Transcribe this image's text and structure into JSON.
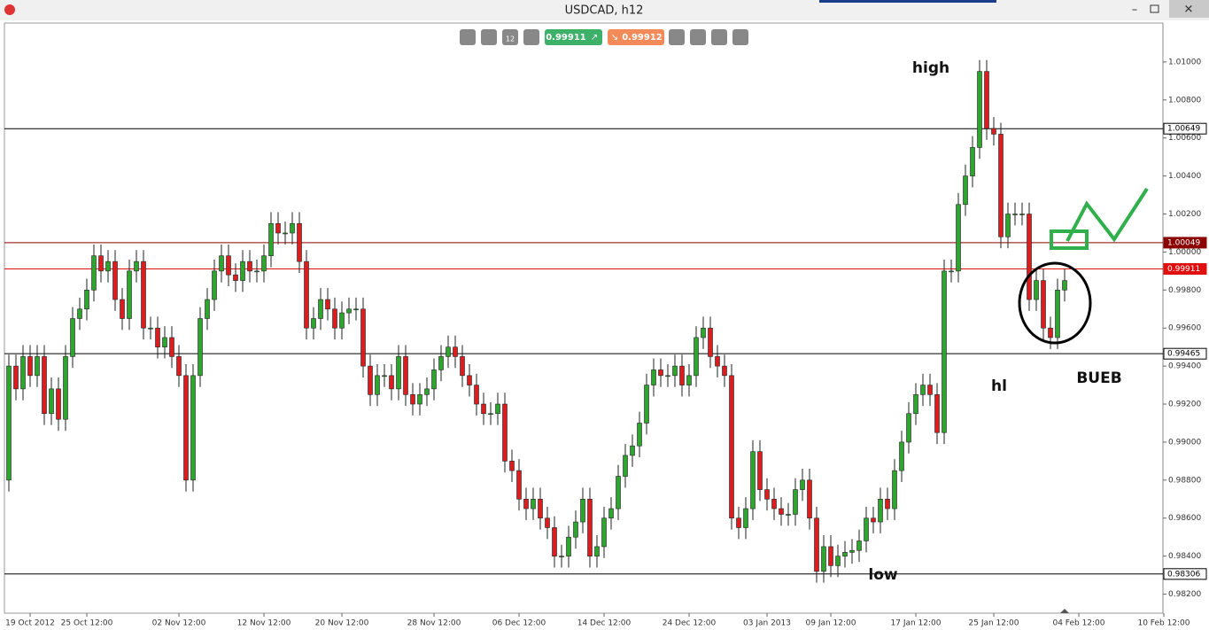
{
  "window": {
    "title": "USDCAD, h12",
    "period_icon": "12",
    "bid": "0.99911",
    "ask": "0.99912"
  },
  "chart_data": {
    "type": "candlestick",
    "up_color": "#2fa52f",
    "down_color": "#d81e1e",
    "ylim": [
      0.981,
      1.012
    ],
    "yticks": [
      {
        "value": 0.982,
        "label": "0.98200"
      },
      {
        "value": 0.984,
        "label": "0.98400"
      },
      {
        "value": 0.986,
        "label": "0.98600"
      },
      {
        "value": 0.988,
        "label": "0.98800"
      },
      {
        "value": 0.99,
        "label": "0.99000"
      },
      {
        "value": 0.992,
        "label": "0.99200"
      },
      {
        "value": 0.994,
        "label": "0.99400"
      },
      {
        "value": 0.996,
        "label": "0.99600"
      },
      {
        "value": 0.998,
        "label": "0.99800"
      },
      {
        "value": 1.0,
        "label": "1.00000"
      },
      {
        "value": 1.002,
        "label": "1.00200"
      },
      {
        "value": 1.004,
        "label": "1.00400"
      },
      {
        "value": 1.006,
        "label": "1.00600"
      },
      {
        "value": 1.008,
        "label": "1.00800"
      },
      {
        "value": 1.01,
        "label": "1.01000"
      }
    ],
    "xlim": [
      0,
      164
    ],
    "xticks": [
      {
        "value": 3,
        "label": "19 Oct 2012"
      },
      {
        "value": 11,
        "label": "25 Oct 12:00"
      },
      {
        "value": 24,
        "label": "02 Nov 12:00"
      },
      {
        "value": 36,
        "label": "12 Nov 12:00"
      },
      {
        "value": 47,
        "label": "20 Nov 12:00"
      },
      {
        "value": 60,
        "label": "28 Nov 12:00"
      },
      {
        "value": 72,
        "label": "06 Dec 12:00"
      },
      {
        "value": 84,
        "label": "14 Dec 12:00"
      },
      {
        "value": 96,
        "label": "24 Dec 12:00"
      },
      {
        "value": 107,
        "label": "03 Jan 2013"
      },
      {
        "value": 116,
        "label": "09 Jan 12:00"
      },
      {
        "value": 128,
        "label": "17 Jan 12:00"
      },
      {
        "value": 139,
        "label": "25 Jan 12:00"
      },
      {
        "value": 151,
        "label": "04 Feb 12:00"
      },
      {
        "value": 163,
        "label": "10 Feb 12:00"
      }
    ],
    "levels": [
      {
        "value": 1.00649,
        "color": "#000000"
      },
      {
        "value": 1.00049,
        "color": "#8b0000"
      },
      {
        "value": 0.99911,
        "color": "#e01010"
      },
      {
        "value": 0.99465,
        "color": "#000000"
      },
      {
        "value": 0.98306,
        "color": "#000000"
      }
    ],
    "annotations": [
      {
        "text": "high"
      },
      {
        "text": "hl"
      },
      {
        "text": "BUEB"
      },
      {
        "text": "low"
      }
    ],
    "open": [
      0.988,
      0.994,
      0.9928,
      0.9945,
      0.9935,
      0.9945,
      0.9915,
      0.9928,
      0.9912,
      0.9945,
      0.9965,
      0.997,
      0.998,
      0.9998,
      0.999,
      0.9995,
      0.9975,
      0.9965,
      0.999,
      0.9995,
      0.996,
      0.996,
      0.995,
      0.9955,
      0.9945,
      0.9935,
      0.988,
      0.9935,
      0.9965,
      0.9975,
      0.999,
      0.9998,
      0.9988,
      0.9985,
      0.9995,
      0.999,
      0.999,
      0.9998,
      1.0015,
      1.001,
      1.001,
      1.0015,
      0.9995,
      0.996,
      0.9965,
      0.9975,
      0.997,
      0.996,
      0.9968,
      0.997,
      0.997,
      0.994,
      0.9925,
      0.9935,
      0.9935,
      0.9928,
      0.9945,
      0.9925,
      0.992,
      0.9925,
      0.9928,
      0.9938,
      0.9945,
      0.995,
      0.9945,
      0.9935,
      0.993,
      0.992,
      0.9915,
      0.9915,
      0.992,
      0.989,
      0.9885,
      0.987,
      0.9865,
      0.987,
      0.986,
      0.9855,
      0.984,
      0.984,
      0.985,
      0.9858,
      0.987,
      0.984,
      0.9845,
      0.986,
      0.9865,
      0.9882,
      0.9893,
      0.9898,
      0.991,
      0.993,
      0.9938,
      0.9935,
      0.9935,
      0.994,
      0.993,
      0.9935,
      0.9955,
      0.996,
      0.9945,
      0.994,
      0.9935,
      0.986,
      0.9855,
      0.9865,
      0.9895,
      0.9875,
      0.987,
      0.9865,
      0.9862,
      0.9862,
      0.9875,
      0.988,
      0.986,
      0.9832,
      0.9845,
      0.9835,
      0.984,
      0.9842,
      0.9843,
      0.9848,
      0.986,
      0.9858,
      0.987,
      0.9865,
      0.9885,
      0.99,
      0.9915,
      0.9925,
      0.993,
      0.9925,
      0.9905,
      0.999,
      0.999,
      1.0025,
      1.004,
      1.0055,
      1.0095,
      1.0065,
      1.0062,
      1.0008,
      1.002,
      1.002,
      1.002,
      0.9975,
      0.9985,
      0.996,
      0.9955,
      0.998
    ],
    "high": [
      0.9946,
      0.9946,
      0.9951,
      0.9951,
      0.9951,
      0.9951,
      0.9934,
      0.9934,
      0.9951,
      0.9971,
      0.9976,
      0.9986,
      1.0004,
      1.0004,
      1.0001,
      1.0001,
      0.9981,
      0.9996,
      1.0001,
      1.0001,
      0.9966,
      0.9966,
      0.9961,
      0.9961,
      0.9951,
      0.9941,
      0.9941,
      0.9971,
      0.9981,
      0.9996,
      1.0004,
      1.0004,
      0.9994,
      1.0001,
      1.0001,
      0.9996,
      1.0004,
      1.0021,
      1.0021,
      1.0016,
      1.0021,
      1.0021,
      1.0001,
      0.9971,
      0.9981,
      0.9981,
      0.9976,
      0.9974,
      0.9976,
      0.9976,
      0.9976,
      0.9946,
      0.9941,
      0.9941,
      0.9941,
      0.9951,
      0.9951,
      0.9931,
      0.9931,
      0.9934,
      0.9944,
      0.9951,
      0.9956,
      0.9956,
      0.9951,
      0.9941,
      0.9936,
      0.9926,
      0.9921,
      0.9926,
      0.9926,
      0.9896,
      0.9891,
      0.9876,
      0.9876,
      0.9876,
      0.9866,
      0.9861,
      0.9846,
      0.9856,
      0.9864,
      0.9876,
      0.9876,
      0.9851,
      0.9866,
      0.9871,
      0.9888,
      0.9899,
      0.9904,
      0.9916,
      0.9936,
      0.9944,
      0.9944,
      0.9941,
      0.9946,
      0.9946,
      0.9941,
      0.9961,
      0.9966,
      0.9966,
      0.9951,
      0.9946,
      0.9941,
      0.9866,
      0.9871,
      0.9901,
      0.9901,
      0.9881,
      0.9876,
      0.9871,
      0.9868,
      0.9881,
      0.9886,
      0.9886,
      0.9866,
      0.9851,
      0.9851,
      0.9846,
      0.9848,
      0.9849,
      0.9854,
      0.9866,
      0.9866,
      0.9876,
      0.9876,
      0.9891,
      0.9906,
      0.9921,
      0.9931,
      0.9936,
      0.9936,
      0.9931,
      0.9996,
      0.9996,
      1.0031,
      1.0046,
      1.0061,
      1.0101,
      1.0101,
      1.0071,
      1.0068,
      1.0026,
      1.0026,
      1.0026,
      1.0026,
      0.9991,
      0.9991,
      0.9966,
      0.9986,
      0.9991
    ],
    "low": [
      0.9874,
      0.9922,
      0.9922,
      0.9929,
      0.9929,
      0.9909,
      0.9909,
      0.9906,
      0.9906,
      0.9939,
      0.9959,
      0.9964,
      0.9974,
      0.9984,
      0.9984,
      0.9969,
      0.9959,
      0.9959,
      0.9984,
      0.9954,
      0.9954,
      0.9944,
      0.9944,
      0.9939,
      0.9929,
      0.9874,
      0.9874,
      0.9929,
      0.9959,
      0.9969,
      0.9984,
      0.9982,
      0.9979,
      0.9979,
      0.9984,
      0.9984,
      0.9984,
      0.9992,
      1.0004,
      1.0004,
      1.0004,
      0.9989,
      0.9954,
      0.9954,
      0.9959,
      0.9964,
      0.9954,
      0.9954,
      0.9962,
      0.9964,
      0.9934,
      0.9919,
      0.9919,
      0.9929,
      0.9922,
      0.9922,
      0.9919,
      0.9914,
      0.9914,
      0.9919,
      0.9922,
      0.9932,
      0.9939,
      0.9939,
      0.9929,
      0.9924,
      0.9914,
      0.9909,
      0.9909,
      0.9909,
      0.9884,
      0.9879,
      0.9864,
      0.9859,
      0.9859,
      0.9854,
      0.9849,
      0.9834,
      0.9834,
      0.9834,
      0.9844,
      0.9852,
      0.9834,
      0.9834,
      0.9839,
      0.9854,
      0.9859,
      0.9876,
      0.9887,
      0.9892,
      0.9904,
      0.9924,
      0.9929,
      0.9929,
      0.9929,
      0.9924,
      0.9924,
      0.9929,
      0.9949,
      0.9939,
      0.9934,
      0.9929,
      0.9854,
      0.9849,
      0.9849,
      0.9859,
      0.9869,
      0.9864,
      0.9859,
      0.9856,
      0.9856,
      0.9856,
      0.9869,
      0.9854,
      0.9826,
      0.9826,
      0.9829,
      0.9829,
      0.9834,
      0.9836,
      0.9837,
      0.9842,
      0.9852,
      0.9852,
      0.9859,
      0.9859,
      0.9879,
      0.9894,
      0.9909,
      0.9919,
      0.9919,
      0.9899,
      0.9899,
      0.9984,
      0.9984,
      1.0019,
      1.0034,
      1.0049,
      1.0059,
      1.0056,
      1.0002,
      1.0002,
      1.0014,
      1.0014,
      0.9969,
      0.9969,
      0.9954,
      0.9949,
      0.9949,
      0.9974
    ],
    "close": [
      0.994,
      0.9928,
      0.9945,
      0.9935,
      0.9945,
      0.9915,
      0.9928,
      0.9912,
      0.9945,
      0.9965,
      0.997,
      0.998,
      0.9998,
      0.999,
      0.9995,
      0.9975,
      0.9965,
      0.999,
      0.9995,
      0.996,
      0.996,
      0.995,
      0.9955,
      0.9945,
      0.9935,
      0.988,
      0.9935,
      0.9965,
      0.9975,
      0.999,
      0.9998,
      0.9988,
      0.9985,
      0.9995,
      0.999,
      0.999,
      0.9998,
      1.0015,
      1.001,
      1.001,
      1.0015,
      0.9995,
      0.996,
      0.9965,
      0.9975,
      0.997,
      0.996,
      0.9968,
      0.997,
      0.997,
      0.994,
      0.9925,
      0.9935,
      0.9935,
      0.9928,
      0.9945,
      0.9925,
      0.992,
      0.9925,
      0.9928,
      0.9938,
      0.9945,
      0.995,
      0.9945,
      0.9935,
      0.993,
      0.992,
      0.9915,
      0.9915,
      0.992,
      0.989,
      0.9885,
      0.987,
      0.9865,
      0.987,
      0.986,
      0.9855,
      0.984,
      0.984,
      0.985,
      0.9858,
      0.987,
      0.984,
      0.9845,
      0.986,
      0.9865,
      0.9882,
      0.9893,
      0.9898,
      0.991,
      0.993,
      0.9938,
      0.9935,
      0.9935,
      0.994,
      0.993,
      0.9935,
      0.9955,
      0.996,
      0.9945,
      0.994,
      0.9935,
      0.986,
      0.9855,
      0.9865,
      0.9895,
      0.9875,
      0.987,
      0.9865,
      0.9862,
      0.9862,
      0.9875,
      0.988,
      0.986,
      0.9832,
      0.9845,
      0.9835,
      0.984,
      0.9842,
      0.9843,
      0.9848,
      0.986,
      0.9858,
      0.987,
      0.9865,
      0.9885,
      0.99,
      0.9915,
      0.9925,
      0.993,
      0.9925,
      0.9905,
      0.999,
      0.999,
      1.0025,
      1.004,
      1.0055,
      1.0095,
      1.0065,
      1.0062,
      1.0008,
      1.002,
      1.002,
      1.002,
      0.9975,
      0.9985,
      0.996,
      0.9955,
      0.998,
      0.9985
    ]
  }
}
